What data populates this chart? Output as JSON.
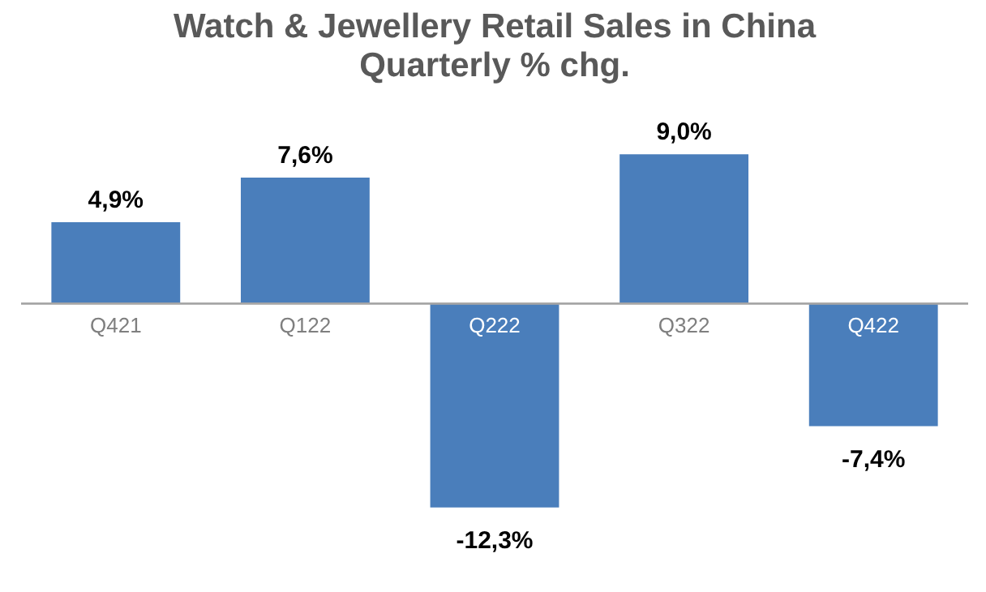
{
  "chart_data": {
    "type": "bar",
    "title": "Watch & Jewellery Retail Sales in China",
    "subtitle": "Quarterly % chg.",
    "categories": [
      "Q421",
      "Q122",
      "Q222",
      "Q322",
      "Q422"
    ],
    "values": [
      4.9,
      7.6,
      -12.3,
      9.0,
      -7.4
    ],
    "value_labels": [
      "4,9%",
      "7,6%",
      "-12,3%",
      "9,0%",
      "-7,4%"
    ],
    "color": "#4a7ebb"
  }
}
